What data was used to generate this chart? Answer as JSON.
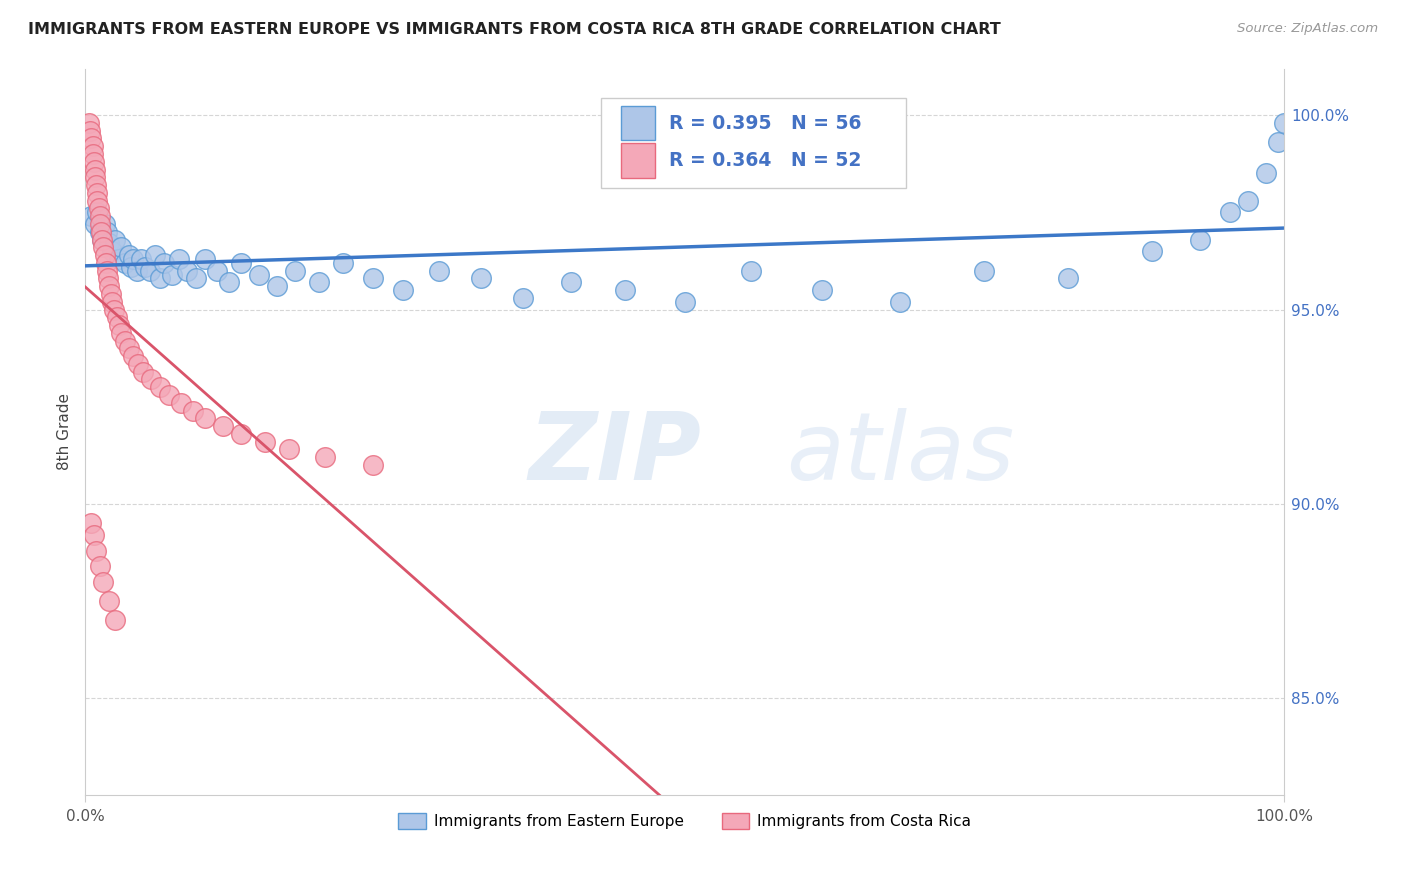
{
  "title": "IMMIGRANTS FROM EASTERN EUROPE VS IMMIGRANTS FROM COSTA RICA 8TH GRADE CORRELATION CHART",
  "source": "Source: ZipAtlas.com",
  "ylabel": "8th Grade",
  "ytick_values": [
    0.85,
    0.9,
    0.95,
    1.0
  ],
  "ytick_labels": [
    "85.0%",
    "90.0%",
    "95.0%",
    "100.0%"
  ],
  "xlim": [
    0.0,
    1.0
  ],
  "ylim": [
    0.825,
    1.012
  ],
  "legend_entries": [
    {
      "R": "0.395",
      "N": "56"
    },
    {
      "R": "0.364",
      "N": "52"
    }
  ],
  "legend_labels": [
    "Immigrants from Eastern Europe",
    "Immigrants from Costa Rica"
  ],
  "blue_edge": "#5b9bd5",
  "blue_face": "#aec6e8",
  "pink_edge": "#e8697d",
  "pink_face": "#f4a8b8",
  "text_color": "#4472c4",
  "blue_line_color": "#3c78c8",
  "pink_line_color": "#d9546a",
  "blue_x": [
    0.005,
    0.008,
    0.01,
    0.012,
    0.014,
    0.016,
    0.018,
    0.02,
    0.022,
    0.025,
    0.028,
    0.03,
    0.033,
    0.036,
    0.038,
    0.04,
    0.043,
    0.046,
    0.05,
    0.054,
    0.058,
    0.062,
    0.066,
    0.072,
    0.078,
    0.085,
    0.092,
    0.1,
    0.11,
    0.12,
    0.13,
    0.145,
    0.16,
    0.175,
    0.195,
    0.215,
    0.24,
    0.265,
    0.295,
    0.33,
    0.365,
    0.405,
    0.45,
    0.5,
    0.555,
    0.615,
    0.68,
    0.75,
    0.82,
    0.89,
    0.93,
    0.955,
    0.97,
    0.985,
    0.995,
    1.0
  ],
  "blue_y": [
    0.974,
    0.972,
    0.975,
    0.97,
    0.968,
    0.972,
    0.97,
    0.967,
    0.965,
    0.968,
    0.963,
    0.966,
    0.962,
    0.964,
    0.961,
    0.963,
    0.96,
    0.963,
    0.961,
    0.96,
    0.964,
    0.958,
    0.962,
    0.959,
    0.963,
    0.96,
    0.958,
    0.963,
    0.96,
    0.957,
    0.962,
    0.959,
    0.956,
    0.96,
    0.957,
    0.962,
    0.958,
    0.955,
    0.96,
    0.958,
    0.953,
    0.957,
    0.955,
    0.952,
    0.96,
    0.955,
    0.952,
    0.96,
    0.958,
    0.965,
    0.968,
    0.975,
    0.978,
    0.985,
    0.993,
    0.998
  ],
  "pink_x": [
    0.003,
    0.004,
    0.005,
    0.006,
    0.006,
    0.007,
    0.008,
    0.008,
    0.009,
    0.01,
    0.01,
    0.011,
    0.012,
    0.012,
    0.013,
    0.014,
    0.015,
    0.016,
    0.017,
    0.018,
    0.019,
    0.02,
    0.021,
    0.022,
    0.024,
    0.026,
    0.028,
    0.03,
    0.033,
    0.036,
    0.04,
    0.044,
    0.048,
    0.055,
    0.062,
    0.07,
    0.08,
    0.09,
    0.1,
    0.115,
    0.13,
    0.15,
    0.17,
    0.2,
    0.24,
    0.005,
    0.007,
    0.009,
    0.012,
    0.015,
    0.02,
    0.025
  ],
  "pink_y": [
    0.998,
    0.996,
    0.994,
    0.992,
    0.99,
    0.988,
    0.986,
    0.984,
    0.982,
    0.98,
    0.978,
    0.976,
    0.974,
    0.972,
    0.97,
    0.968,
    0.966,
    0.964,
    0.962,
    0.96,
    0.958,
    0.956,
    0.954,
    0.952,
    0.95,
    0.948,
    0.946,
    0.944,
    0.942,
    0.94,
    0.938,
    0.936,
    0.934,
    0.932,
    0.93,
    0.928,
    0.926,
    0.924,
    0.922,
    0.92,
    0.918,
    0.916,
    0.914,
    0.912,
    0.91,
    0.895,
    0.892,
    0.888,
    0.884,
    0.88,
    0.875,
    0.87
  ]
}
